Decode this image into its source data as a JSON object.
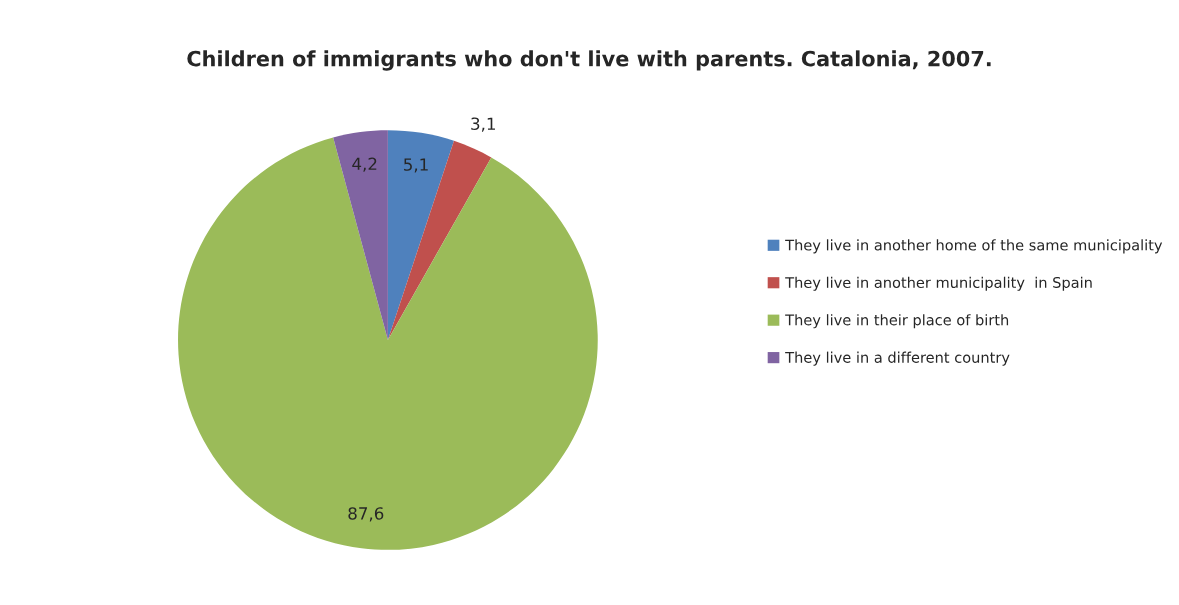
{
  "chart_data": {
    "type": "pie",
    "title": "Children of immigrants who don't live with parents. Catalonia, 2007.",
    "categories": [
      "They live in another home of the same municipality",
      "They live in another municipality  in Spain",
      "They live in their place of birth",
      "They live in a different country"
    ],
    "values": [
      5.1,
      3.1,
      87.6,
      4.2
    ],
    "value_labels": [
      "5,1",
      "3,1",
      "87,6",
      "4,2"
    ],
    "colors": [
      "#4f81bd",
      "#c0504d",
      "#9bbb59",
      "#8064a2"
    ],
    "legend": "right"
  }
}
